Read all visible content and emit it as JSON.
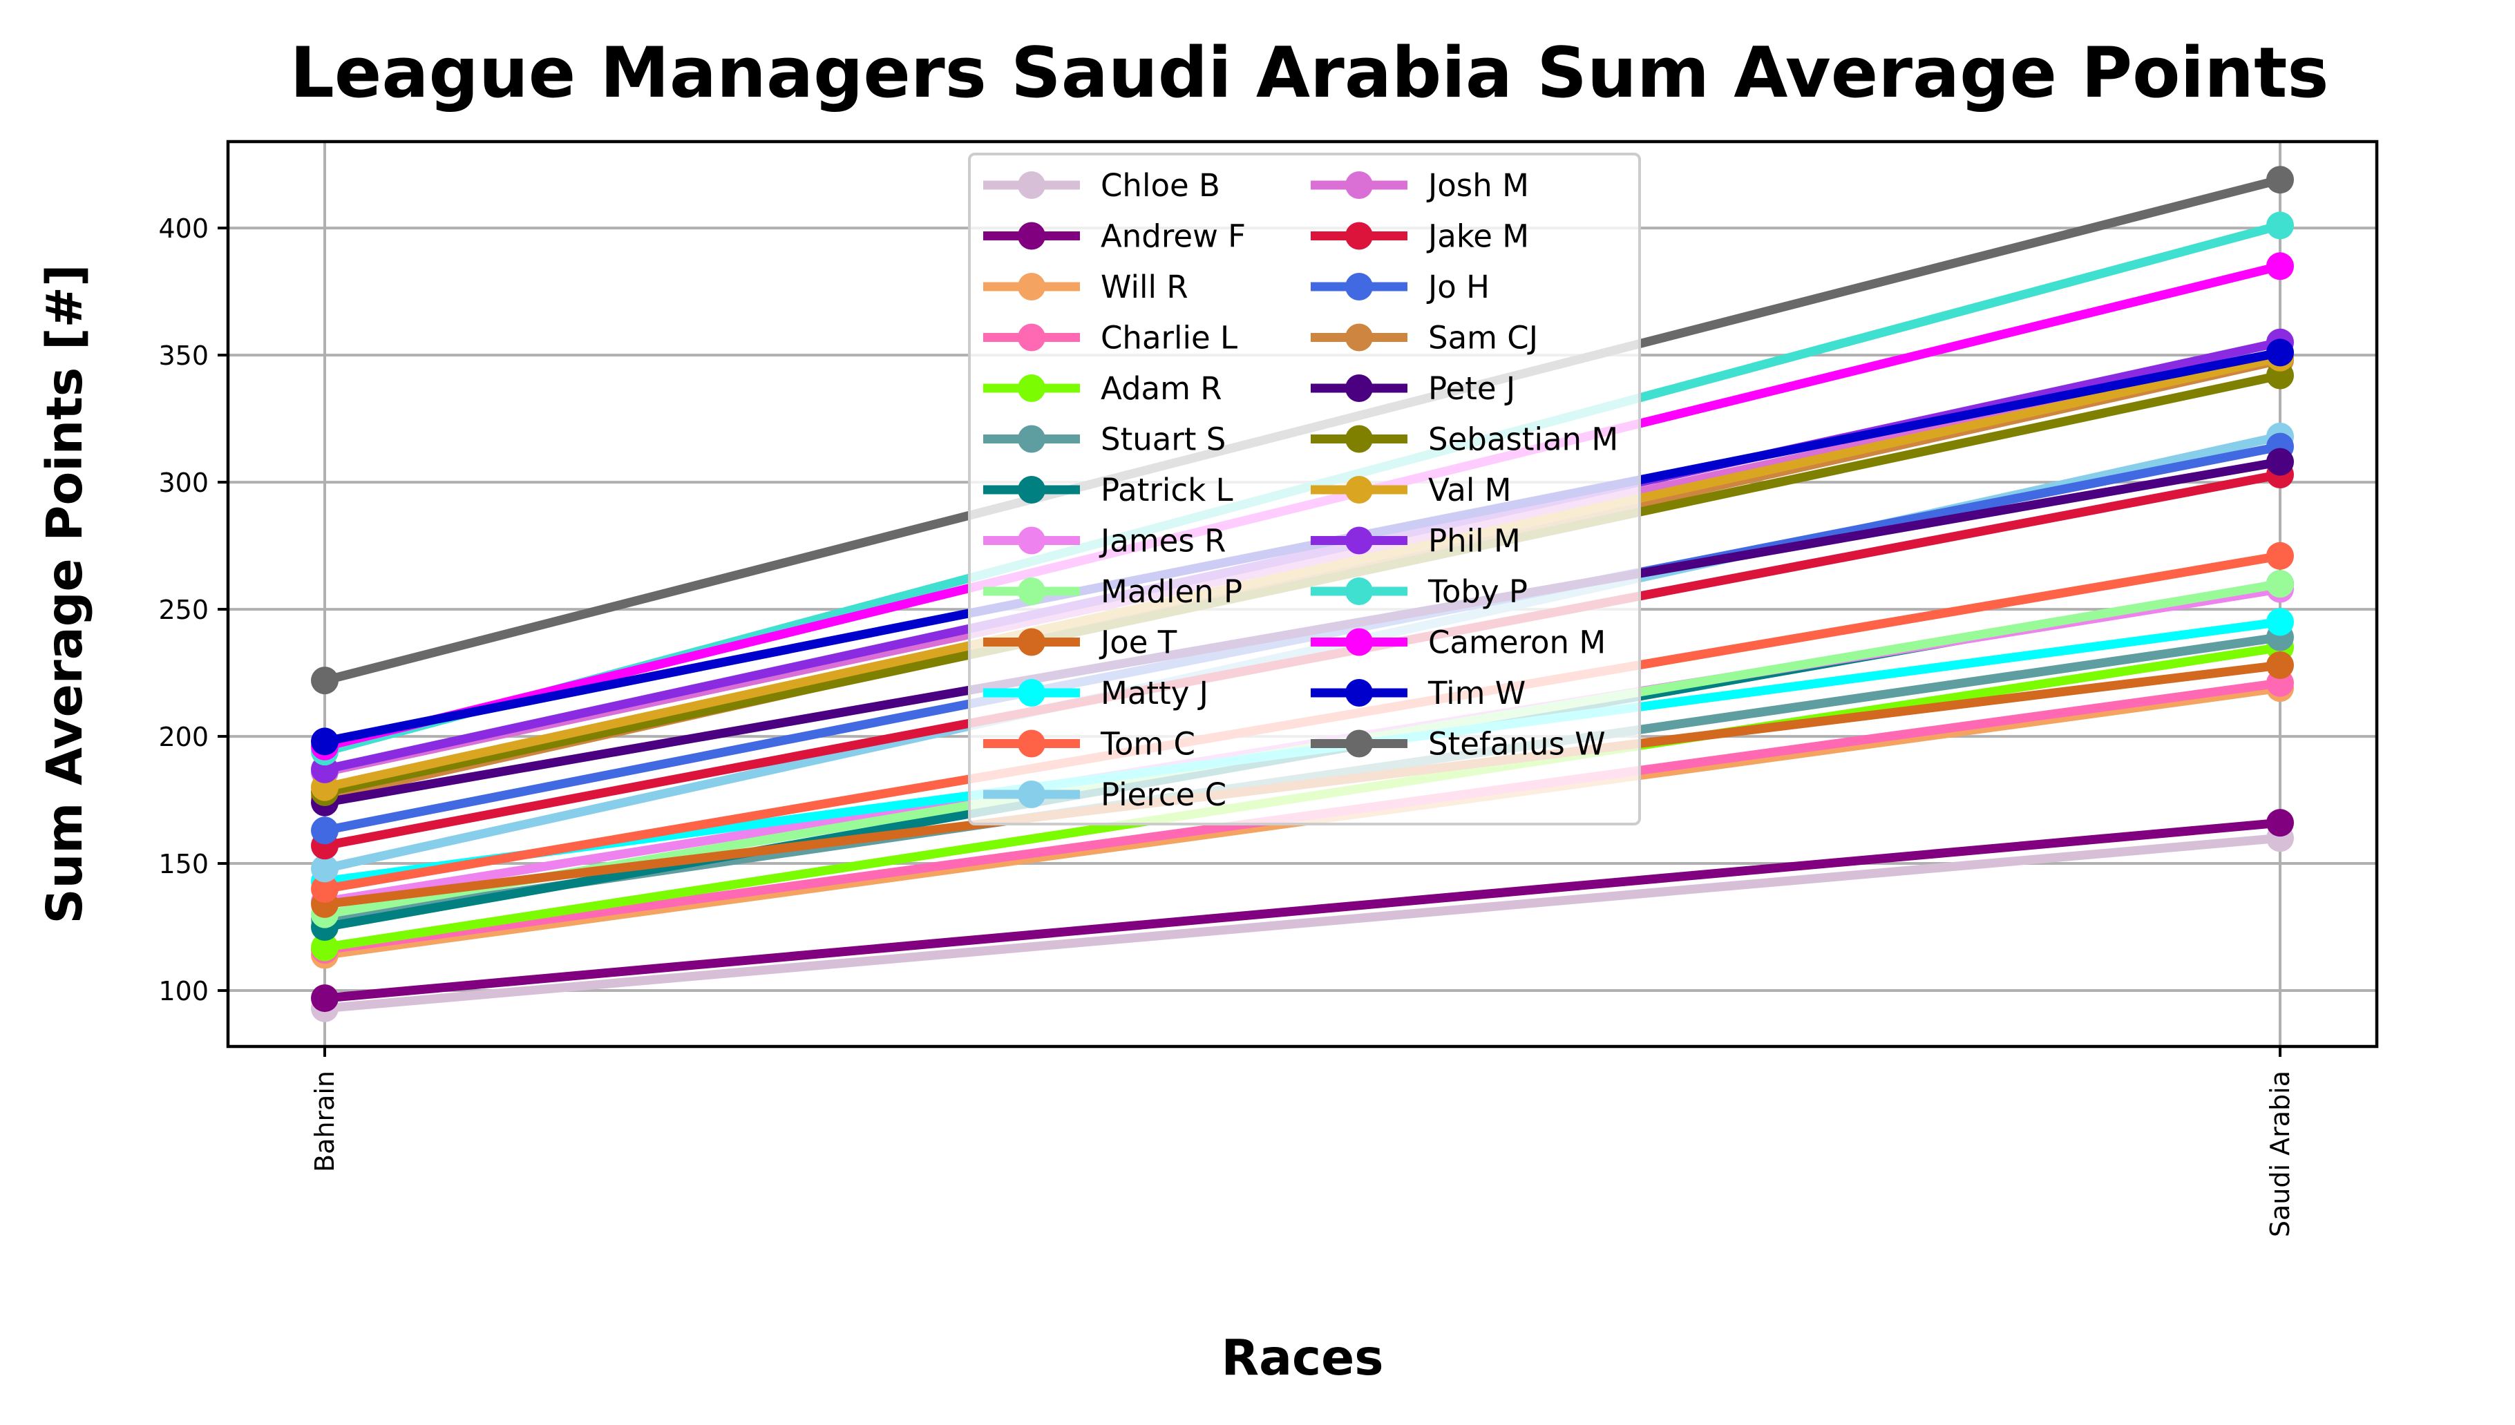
{
  "chart_data": {
    "type": "line",
    "title": "League Managers Saudi Arabia Sum Average Points",
    "xlabel": "Races",
    "ylabel": "Sum Average Points [#]",
    "categories": [
      "Bahrain",
      "Saudi Arabia"
    ],
    "ylim": [
      78,
      434
    ],
    "yticks": [
      100,
      150,
      200,
      250,
      300,
      350,
      400
    ],
    "grid": true,
    "legend_position": "top-center",
    "legend_columns": 2,
    "series": [
      {
        "name": "Chloe B",
        "color": "#d8bfd8",
        "values": [
          93,
          160
        ]
      },
      {
        "name": "Andrew F",
        "color": "#800080",
        "values": [
          97,
          166
        ]
      },
      {
        "name": "Will R",
        "color": "#f4a460",
        "values": [
          114,
          219
        ]
      },
      {
        "name": "Charlie L",
        "color": "#ff69b4",
        "values": [
          116,
          221
        ]
      },
      {
        "name": "Adam R",
        "color": "#7cfc00",
        "values": [
          117,
          235
        ]
      },
      {
        "name": "Stuart S",
        "color": "#5f9ea0",
        "values": [
          128,
          239
        ]
      },
      {
        "name": "Patrick L",
        "color": "#008080",
        "values": [
          125,
          260
        ]
      },
      {
        "name": "James R",
        "color": "#ee82ee",
        "values": [
          135,
          258
        ]
      },
      {
        "name": "Madlen P",
        "color": "#98fb98",
        "values": [
          130,
          260
        ]
      },
      {
        "name": "Joe T",
        "color": "#d2691e",
        "values": [
          134,
          228
        ]
      },
      {
        "name": "Matty J",
        "color": "#00ffff",
        "values": [
          143,
          245
        ]
      },
      {
        "name": "Tom C",
        "color": "#ff6347",
        "values": [
          140,
          271
        ]
      },
      {
        "name": "Pierce C",
        "color": "#87ceeb",
        "values": [
          148,
          318
        ]
      },
      {
        "name": "Josh M",
        "color": "#da70d6",
        "values": [
          186,
          350
        ]
      },
      {
        "name": "Jake M",
        "color": "#dc143c",
        "values": [
          157,
          303
        ]
      },
      {
        "name": "Jo H",
        "color": "#4169e1",
        "values": [
          163,
          314
        ]
      },
      {
        "name": "Sam CJ",
        "color": "#cd853f",
        "values": [
          176,
          348
        ]
      },
      {
        "name": "Pete J",
        "color": "#4b0082",
        "values": [
          174,
          308
        ]
      },
      {
        "name": "Sebastian M",
        "color": "#808000",
        "values": [
          178,
          342
        ]
      },
      {
        "name": "Val M",
        "color": "#daa520",
        "values": [
          180,
          349
        ]
      },
      {
        "name": "Phil M",
        "color": "#8a2be2",
        "values": [
          187,
          355
        ]
      },
      {
        "name": "Toby P",
        "color": "#40e0d0",
        "values": [
          194,
          401
        ]
      },
      {
        "name": "Cameron M",
        "color": "#ff00ff",
        "values": [
          196,
          385
        ]
      },
      {
        "name": "Tim W",
        "color": "#0000cd",
        "values": [
          198,
          351
        ]
      },
      {
        "name": "Stefanus W",
        "color": "#696969",
        "values": [
          222,
          419
        ]
      }
    ]
  }
}
